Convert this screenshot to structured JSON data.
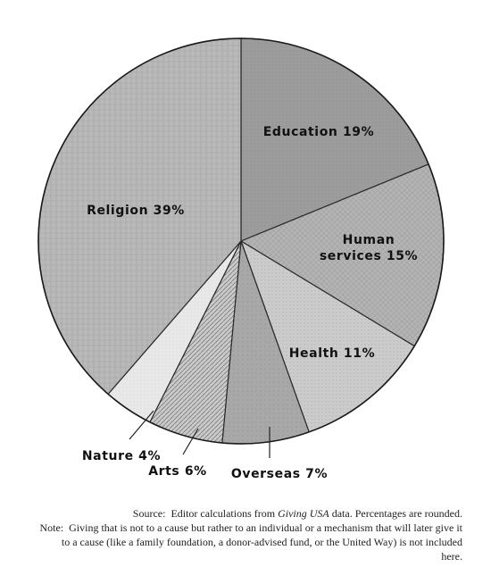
{
  "chart_data": {
    "type": "pie",
    "title": "",
    "categories": [
      "Education",
      "Human services",
      "Health",
      "Overseas",
      "Arts",
      "Nature",
      "Religion"
    ],
    "values": [
      19,
      15,
      11,
      7,
      6,
      4,
      39
    ],
    "labels": [
      "Education 19%",
      "Human services 15%",
      "Health 11%",
      "Overseas 7%",
      "Arts 6%",
      "Nature 4%",
      "Religion 39%"
    ],
    "colors": [
      "#9a9a9a",
      "#b3b3b3",
      "#c8c8c8",
      "#a6a6a6",
      "#c9c9c9",
      "#e6e6e6",
      "#b8b8b8"
    ],
    "legend": "none"
  },
  "labels": {
    "education": "Education 19%",
    "human_services_line1": "Human",
    "human_services_line2": "services 15%",
    "health": "Health 11%",
    "overseas": "Overseas 7%",
    "arts": "Arts 6%",
    "nature": "Nature 4%",
    "religion": "Religion 39%"
  },
  "notes": {
    "source_tag": "Source:",
    "source_pre": "Editor calculations from ",
    "source_em": "Giving USA",
    "source_post": " data. Percentages are rounded.",
    "note_tag": "Note:",
    "note_text": "Giving that is not to a cause but rather to an individual or a mechanism that will later give it to a cause (like a family foundation, a donor-advised fund, or the United Way) is not included here."
  }
}
